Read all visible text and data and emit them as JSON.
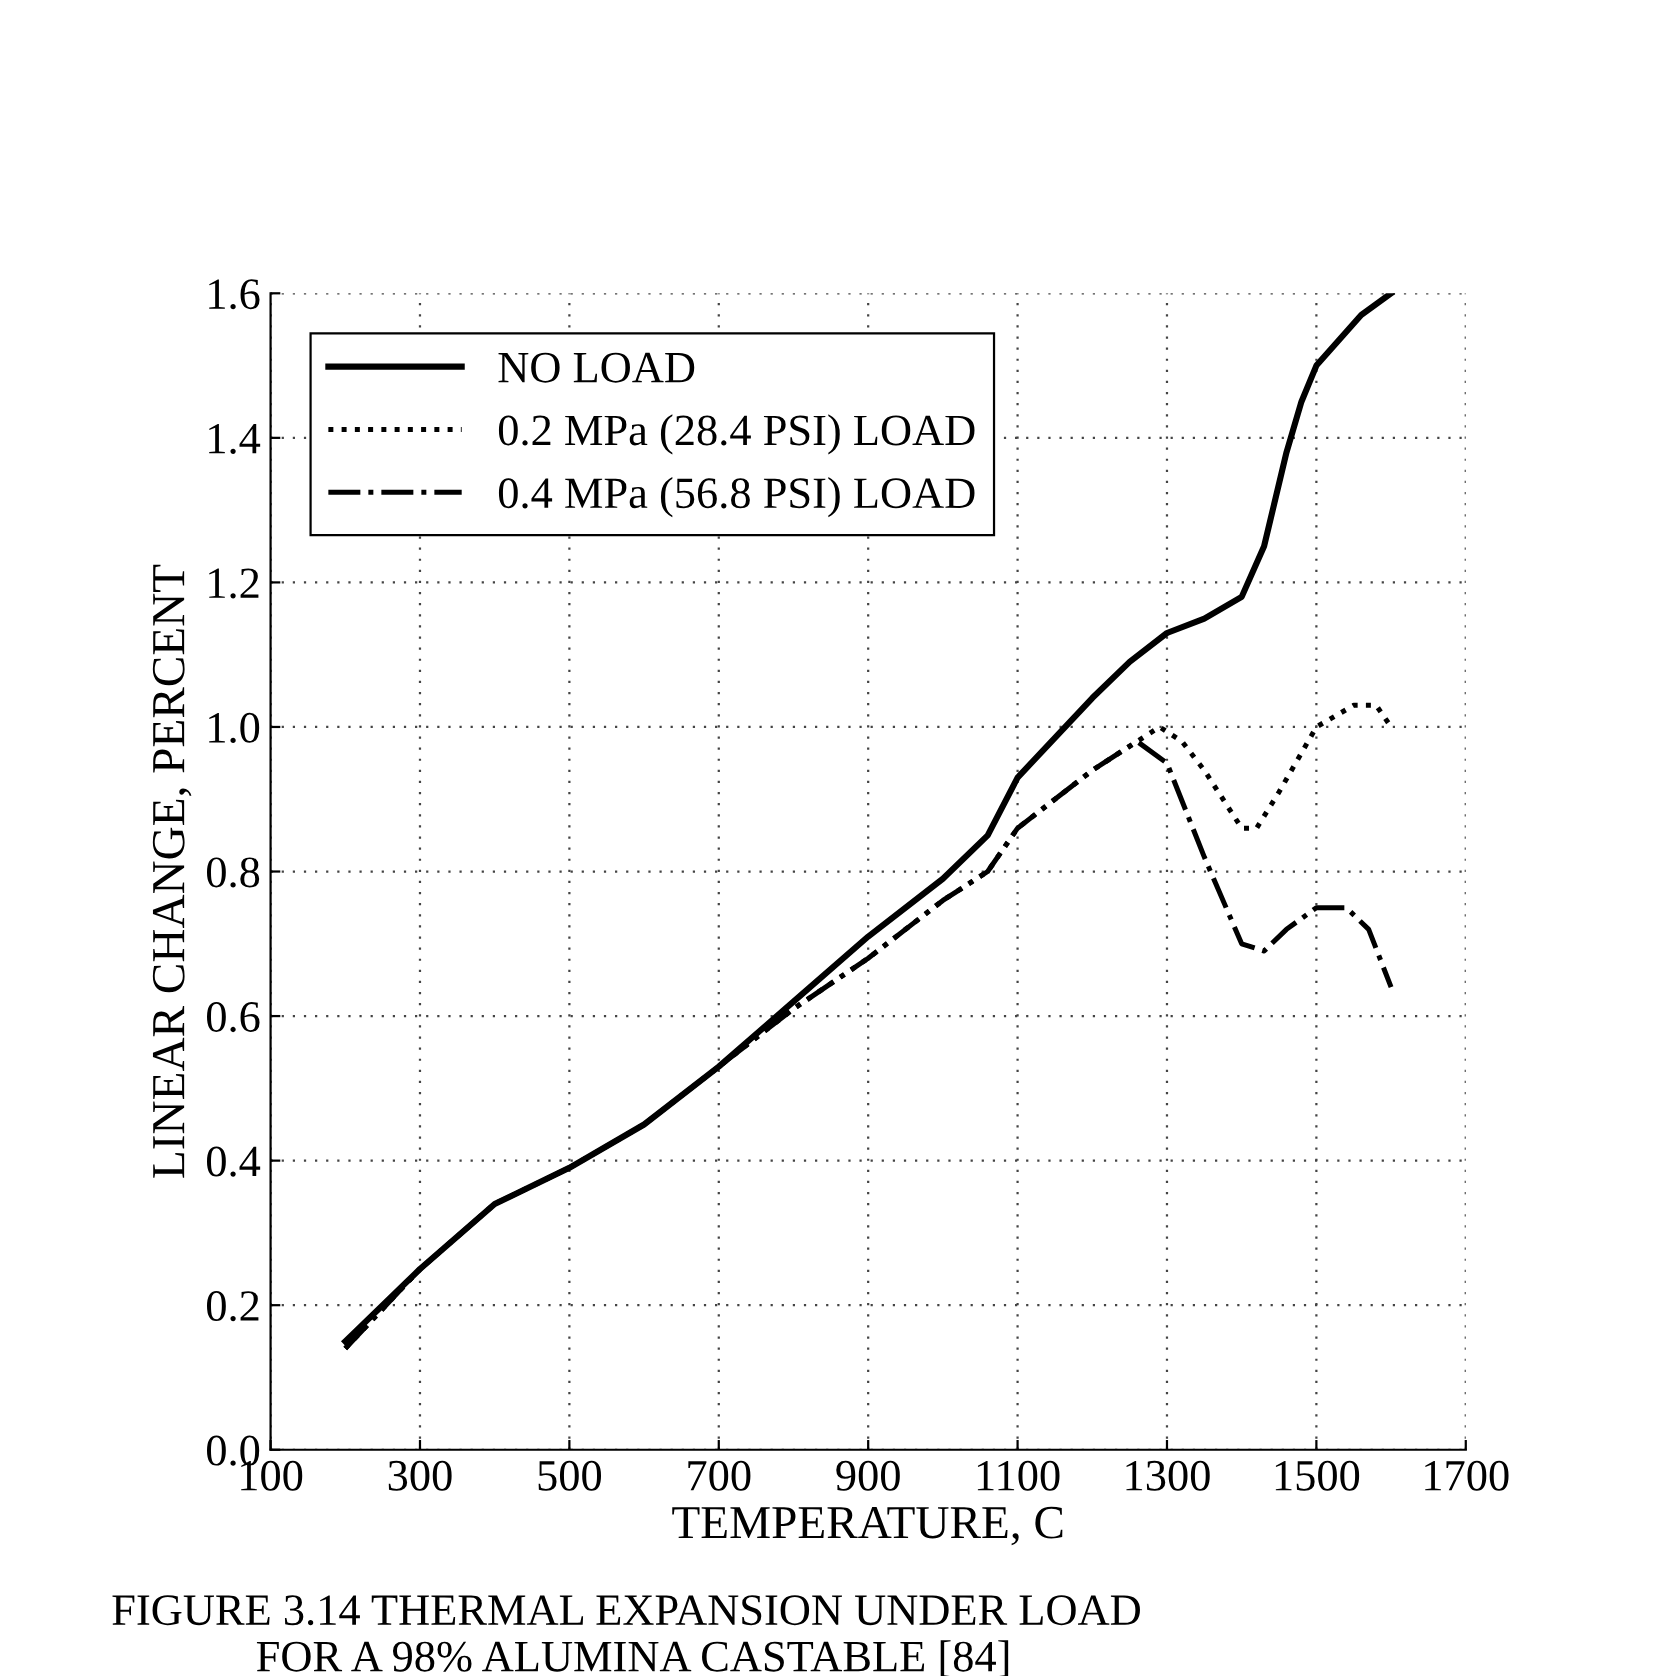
{
  "chart_data": {
    "type": "line",
    "xlabel": "TEMPERATURE, C",
    "ylabel": "LINEAR CHANGE, PERCENT",
    "xlim": [
      100,
      1700
    ],
    "xticks": [
      100,
      300,
      500,
      700,
      900,
      1100,
      1300,
      1500,
      1700
    ],
    "ylim": [
      0,
      1.6
    ],
    "yticks": [
      {
        "value": 0,
        "label": "0.0"
      },
      0.2,
      0.4,
      0.6,
      0.8,
      {
        "value": 1.0,
        "label": "1.0"
      },
      1.2,
      1.4,
      1.6
    ],
    "grid": true,
    "legend": "top left",
    "annotations": [
      "FIGURE 3.14 THERMAL EXPANSION UNDER LOAD\n             FOR A 98% ALUMINA CASTABLE [84]"
    ],
    "series": [
      {
        "name": "NO LOAD",
        "color": "#000000",
        "line_style": "solid",
        "x": [
          200,
          300,
          400,
          500,
          600,
          700,
          800,
          900,
          1000,
          1060,
          1100,
          1200,
          1250,
          1300,
          1350,
          1400,
          1430,
          1460,
          1480,
          1500,
          1560,
          1600
        ],
        "values": [
          0.15,
          0.25,
          0.34,
          0.39,
          0.45,
          0.53,
          0.62,
          0.71,
          0.79,
          0.85,
          0.93,
          1.04,
          1.09,
          1.13,
          1.15,
          1.18,
          1.25,
          1.38,
          1.45,
          1.5,
          1.57,
          1.6
        ]
      },
      {
        "name": "0.2 MPa (28.4 PSI) LOAD",
        "color": "#000000",
        "line_style": "dotted",
        "x": [
          200,
          300,
          400,
          500,
          600,
          700,
          800,
          900,
          1000,
          1060,
          1100,
          1200,
          1260,
          1290,
          1320,
          1350,
          1400,
          1420,
          1450,
          1500,
          1550,
          1580,
          1600
        ],
        "values": [
          0.14,
          0.25,
          0.34,
          0.39,
          0.45,
          0.53,
          0.61,
          0.68,
          0.76,
          0.8,
          0.86,
          0.94,
          0.98,
          1.0,
          0.98,
          0.94,
          0.86,
          0.86,
          0.91,
          1.0,
          1.03,
          1.03,
          1.0
        ]
      },
      {
        "name": "0.4 MPa (56.8 PSI) LOAD",
        "color": "#000000",
        "line_style": "dashdot",
        "x": [
          200,
          300,
          400,
          500,
          600,
          700,
          800,
          900,
          1000,
          1060,
          1100,
          1200,
          1260,
          1300,
          1350,
          1400,
          1430,
          1460,
          1500,
          1540,
          1570,
          1600
        ],
        "values": [
          0.14,
          0.25,
          0.34,
          0.39,
          0.45,
          0.53,
          0.61,
          0.68,
          0.76,
          0.8,
          0.86,
          0.94,
          0.98,
          0.95,
          0.82,
          0.7,
          0.69,
          0.72,
          0.75,
          0.75,
          0.72,
          0.64
        ]
      }
    ]
  }
}
